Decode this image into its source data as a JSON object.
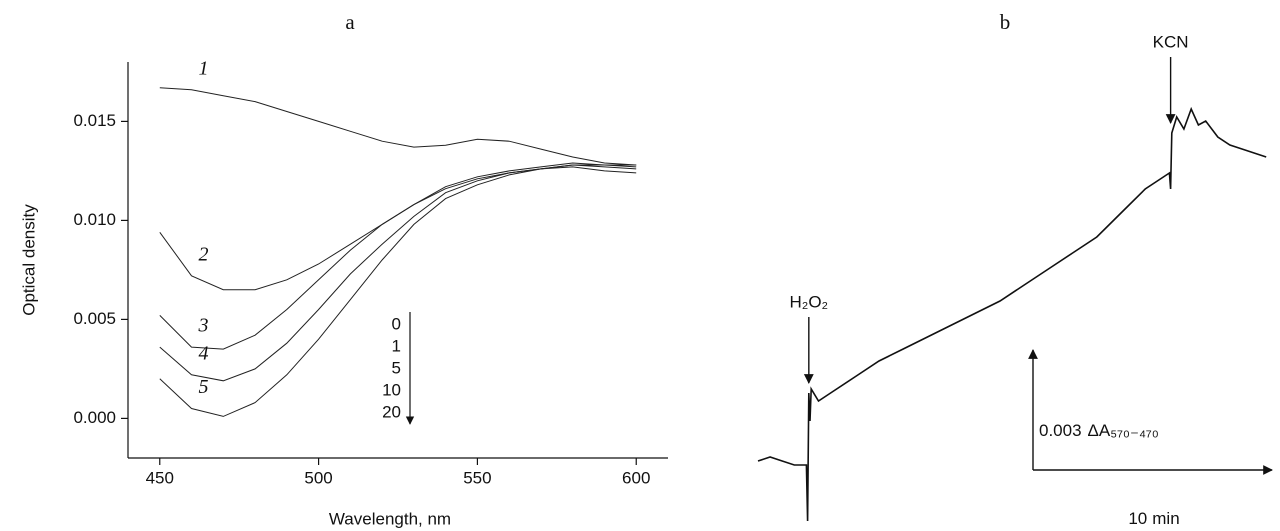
{
  "chart_data": [
    {
      "type": "line",
      "title": "a",
      "x_label": "Wavelength, nm",
      "y_label": "Optical density",
      "x": [
        450,
        460,
        470,
        480,
        490,
        500,
        510,
        520,
        530,
        540,
        550,
        560,
        570,
        580,
        590,
        600
      ],
      "series": [
        {
          "name": "1",
          "color": "#222",
          "values": [
            0.0167,
            0.0166,
            0.0163,
            0.016,
            0.0155,
            0.015,
            0.0145,
            0.014,
            0.0137,
            0.0138,
            0.0141,
            0.014,
            0.0136,
            0.0132,
            0.0129,
            0.0128
          ]
        },
        {
          "name": "2",
          "color": "#222",
          "values": [
            0.0094,
            0.0072,
            0.0065,
            0.0065,
            0.007,
            0.0078,
            0.0088,
            0.0098,
            0.0108,
            0.0116,
            0.0121,
            0.0124,
            0.0126,
            0.0128,
            0.0128,
            0.0128
          ]
        },
        {
          "name": "3",
          "color": "#222",
          "values": [
            0.0052,
            0.0036,
            0.0035,
            0.0042,
            0.0055,
            0.007,
            0.0085,
            0.0098,
            0.0108,
            0.0117,
            0.0122,
            0.0125,
            0.0127,
            0.0129,
            0.0128,
            0.0127
          ]
        },
        {
          "name": "4",
          "color": "#222",
          "values": [
            0.0036,
            0.0022,
            0.0019,
            0.0025,
            0.0038,
            0.0055,
            0.0073,
            0.0088,
            0.0102,
            0.0114,
            0.012,
            0.0124,
            0.0126,
            0.0128,
            0.0127,
            0.0126
          ]
        },
        {
          "name": "5",
          "color": "#222",
          "values": [
            0.002,
            0.0005,
            0.0001,
            0.0008,
            0.0022,
            0.004,
            0.006,
            0.008,
            0.0098,
            0.0111,
            0.0118,
            0.0123,
            0.0126,
            0.0127,
            0.0125,
            0.0124
          ]
        }
      ],
      "time_labels": [
        0,
        1,
        5,
        10,
        20
      ],
      "xlim": [
        440,
        610
      ],
      "xticks": [
        450,
        500,
        550,
        600
      ],
      "ylim": [
        -0.002,
        0.018
      ],
      "yticks": [
        {
          "value": 0,
          "label": "0.000"
        },
        0.005,
        {
          "value": 0.01,
          "label": "0.010"
        },
        0.015
      ]
    },
    {
      "type": "line",
      "title": "b",
      "x": [
        0,
        0.5,
        1,
        1.5,
        2,
        2.05,
        2.1,
        2.15,
        2.2,
        2.5,
        3,
        4,
        5,
        6,
        7,
        8,
        9,
        10,
        11,
        12,
        13,
        14,
        15,
        16,
        16.5,
        17,
        17.05,
        17.1,
        17.3,
        17.6,
        17.9,
        18.2,
        18.5,
        19,
        19.5,
        20,
        20.5,
        21
      ],
      "series": [
        {
          "color": "#111",
          "values": [
            0.0001,
            0.0002,
            0.0001,
            0.0,
            0.0,
            -0.0014,
            0.0018,
            0.0011,
            0.0019,
            0.0016,
            0.0018,
            0.0022,
            0.0026,
            0.0029,
            0.0032,
            0.0035,
            0.0038,
            0.0041,
            0.0045,
            0.0049,
            0.0053,
            0.0057,
            0.0063,
            0.0069,
            0.0071,
            0.0073,
            0.0069,
            0.0083,
            0.0087,
            0.0084,
            0.0089,
            0.0085,
            0.0086,
            0.0082,
            0.008,
            0.0079,
            0.0078,
            0.0077
          ]
        }
      ],
      "annotations": [
        {
          "label": "H₂O₂",
          "x": 2.1
        },
        {
          "label": "KCN",
          "x": 17.05
        }
      ],
      "y_scale_bar": {
        "value": 0.003,
        "label": "ΔA₅₇₀₋₄₇₀"
      },
      "x_scale_bar": {
        "value": 10,
        "unit": "min"
      },
      "xlim": [
        0,
        21.5
      ],
      "ylim": [
        -0.0015,
        0.010625
      ]
    }
  ]
}
